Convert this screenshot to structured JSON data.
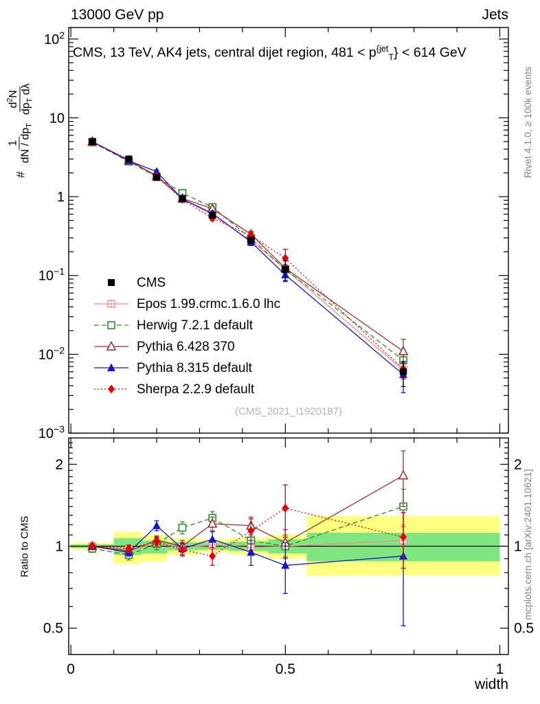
{
  "header": {
    "left": "13000 GeV pp",
    "right": "Jets"
  },
  "side": {
    "rivet": "Rivet 4.1.0, ≥ 100k events",
    "mcplots": "mcplots.cern.ch [arXiv:2401.10621]"
  },
  "titles": {
    "main_parts": [
      {
        "t": "CMS, 13 TeV, AK4 jets, central dijet region, 481 < p"
      },
      {
        "sup": "{jet"
      },
      {
        "sub": "T"
      },
      {
        "t": "} < 614 GeV"
      }
    ],
    "watermark": "(CMS_2021_I1920187)",
    "ylabel": {
      "hash": "#",
      "f1n": [
        {
          "t": "1"
        }
      ],
      "f1d": [
        {
          "t": "dN / dp"
        },
        {
          "sub": "T"
        }
      ],
      "f2n": [
        {
          "t": "d"
        },
        {
          "sup": "2"
        },
        {
          "t": "N"
        }
      ],
      "f2d": [
        {
          "t": "dp"
        },
        {
          "sub": "T"
        },
        {
          "t": " dλ"
        }
      ]
    }
  },
  "chart_data": {
    "type": "line",
    "xlabel": "width",
    "xlim": [
      -0.005,
      1.02
    ],
    "x": [
      0.05,
      0.135,
      0.2,
      0.26,
      0.33,
      0.42,
      0.5,
      0.775
    ],
    "x_ticks_major": [
      0,
      0.5,
      1
    ],
    "x_tick_labels": [
      "0",
      "0.5",
      "1"
    ],
    "x_ticks_minor_step": 0.1,
    "main_panel": {
      "yscale": "log",
      "ylim": [
        0.001,
        140
      ],
      "y_tick_exponents": [
        2,
        1,
        0,
        -1,
        -2,
        -3
      ],
      "cms_values": [
        5.0,
        3.0,
        1.75,
        0.95,
        0.58,
        0.28,
        0.12,
        0.006
      ],
      "cms_rel_err": [
        0.04,
        0.04,
        0.04,
        0.05,
        0.06,
        0.08,
        0.28,
        0.35
      ]
    },
    "ratio_panel": {
      "label": "Ratio to CMS",
      "yscale": "log",
      "ylim": [
        0.4,
        2.5
      ],
      "y_ticks": [
        0.5,
        1,
        2
      ],
      "y_tick_labels": [
        "0.5",
        "1",
        "2"
      ],
      "bands": {
        "yellow_color": "#ffff80",
        "green_color": "#7fe57f",
        "bins": [
          {
            "x0": 0.0,
            "x1": 0.1,
            "y_lo": 0.97,
            "y_hi": 1.03,
            "g_lo": 0.985,
            "g_hi": 1.015
          },
          {
            "x0": 0.1,
            "x1": 0.165,
            "y_lo": 0.86,
            "y_hi": 1.13,
            "g_lo": 0.93,
            "g_hi": 1.07
          },
          {
            "x0": 0.165,
            "x1": 0.225,
            "y_lo": 0.88,
            "y_hi": 1.1,
            "g_lo": 0.94,
            "g_hi": 1.05
          },
          {
            "x0": 0.225,
            "x1": 0.295,
            "y_lo": 0.93,
            "y_hi": 1.07,
            "g_lo": 0.965,
            "g_hi": 1.035
          },
          {
            "x0": 0.295,
            "x1": 0.37,
            "y_lo": 0.95,
            "y_hi": 1.06,
            "g_lo": 0.97,
            "g_hi": 1.03
          },
          {
            "x0": 0.37,
            "x1": 0.46,
            "y_lo": 0.93,
            "y_hi": 1.07,
            "g_lo": 0.96,
            "g_hi": 1.04
          },
          {
            "x0": 0.46,
            "x1": 0.55,
            "y_lo": 0.9,
            "y_hi": 1.1,
            "g_lo": 0.94,
            "g_hi": 1.06
          },
          {
            "x0": 0.55,
            "x1": 1.0,
            "y_lo": 0.78,
            "y_hi": 1.29,
            "g_lo": 0.88,
            "g_hi": 1.12
          }
        ]
      }
    },
    "series": [
      {
        "name": "CMS",
        "color": "#000000",
        "marker": "square-filled",
        "line": "none",
        "is_data": true,
        "ratio": null,
        "ratio_err": null
      },
      {
        "name": "Epos 1.99.crmc.1.6.0 lhc",
        "color": "#f48a8a",
        "marker": "square-plus",
        "line": "solid",
        "ratio": [
          1.0,
          0.97,
          1.02,
          0.99,
          1.01,
          0.99,
          1.0,
          1.05
        ],
        "ratio_err": [
          0.02,
          0.02,
          0.03,
          0.03,
          0.04,
          0.05,
          0.08,
          0.15
        ]
      },
      {
        "name": "Herwig 7.2.1 default",
        "color": "#2e8b2e",
        "marker": "square-open",
        "line": "dashed",
        "ratio": [
          0.98,
          0.93,
          1.02,
          1.17,
          1.27,
          1.05,
          1.0,
          1.4
        ],
        "ratio_err": [
          0.03,
          0.04,
          0.05,
          0.06,
          0.07,
          0.08,
          0.1,
          0.22
        ]
      },
      {
        "name": "Pythia 6.428 370",
        "color": "#993333",
        "marker": "triangle-open",
        "line": "solid",
        "ratio": [
          1.0,
          0.96,
          1.05,
          1.0,
          1.21,
          1.19,
          1.03,
          1.82
        ],
        "ratio_err": [
          0.02,
          0.03,
          0.04,
          0.05,
          0.07,
          0.09,
          0.12,
          0.42
        ]
      },
      {
        "name": "Pythia 8.315 default",
        "color": "#1515cc",
        "marker": "triangle-filled",
        "line": "solid",
        "ratio": [
          1.0,
          0.95,
          1.19,
          0.98,
          1.06,
          0.95,
          0.85,
          0.92
        ],
        "ratio_err": [
          0.02,
          0.03,
          0.05,
          0.05,
          0.07,
          0.1,
          0.18,
          0.41
        ]
      },
      {
        "name": "Sherpa 2.2.9 default",
        "color": "#e60000",
        "marker": "diamond-filled",
        "line": "dotted",
        "ratio": [
          1.0,
          0.98,
          1.04,
          0.97,
          0.92,
          1.14,
          1.38,
          1.08
        ],
        "ratio_err": [
          0.02,
          0.03,
          0.04,
          0.05,
          0.07,
          0.12,
          0.3,
          0.25
        ]
      }
    ],
    "legend_position": "middle-left"
  }
}
